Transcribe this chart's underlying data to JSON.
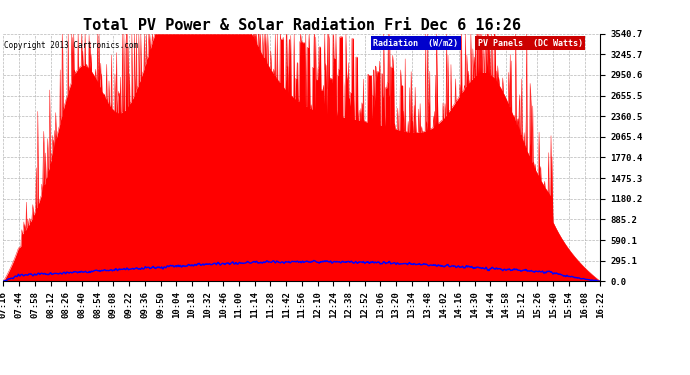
{
  "title": "Total PV Power & Solar Radiation Fri Dec 6 16:26",
  "copyright": "Copyright 2013 Cartronics.com",
  "ylabel_right_ticks": [
    0.0,
    295.1,
    590.1,
    885.2,
    1180.2,
    1475.3,
    1770.4,
    2065.4,
    2360.5,
    2655.5,
    2950.6,
    3245.7,
    3540.7
  ],
  "ymax": 3540.7,
  "ymin": 0.0,
  "x_tick_labels": [
    "07:16",
    "07:44",
    "07:58",
    "08:12",
    "08:26",
    "08:40",
    "08:54",
    "09:08",
    "09:22",
    "09:36",
    "09:50",
    "10:04",
    "10:18",
    "10:32",
    "10:46",
    "11:00",
    "11:14",
    "11:28",
    "11:42",
    "11:56",
    "12:10",
    "12:24",
    "12:38",
    "12:52",
    "13:06",
    "13:20",
    "13:34",
    "13:48",
    "14:02",
    "14:16",
    "14:30",
    "14:44",
    "14:58",
    "15:12",
    "15:26",
    "15:40",
    "15:54",
    "16:08",
    "16:22"
  ],
  "background_color": "#ffffff",
  "plot_bg_color": "#ffffff",
  "grid_color": "#b0b0b0",
  "fill_color_pv": "#ff0000",
  "line_color_radiation": "#0000ff",
  "legend_radiation_bg": "#0000cc",
  "legend_pv_bg": "#cc0000",
  "title_fontsize": 11,
  "tick_fontsize": 6.5,
  "label_fontsize": 7
}
